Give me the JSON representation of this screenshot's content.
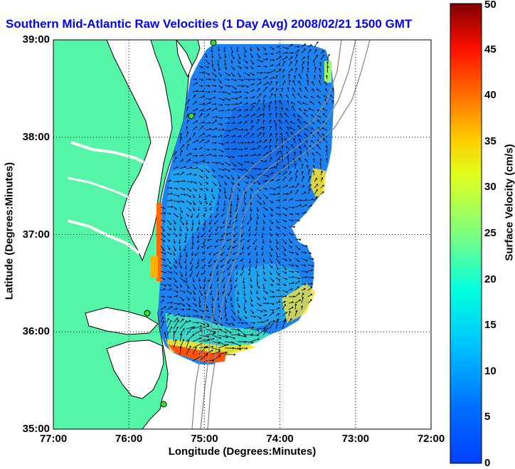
{
  "title": "Southern Mid-Atlantic Raw Velocities (1 Day Avg) 2008/02/21 1500 GMT",
  "x_axis": {
    "label": "Longitude (Degrees:Minutes)",
    "ticks": [
      {
        "text": "77:00",
        "value": -77
      },
      {
        "text": "76:00",
        "value": -76
      },
      {
        "text": "75:00",
        "value": -75
      },
      {
        "text": "74:00",
        "value": -74
      },
      {
        "text": "73:00",
        "value": -73
      },
      {
        "text": "72:00",
        "value": -72
      }
    ]
  },
  "y_axis": {
    "label": "Latitude (Degrees:Minutes)",
    "ticks": [
      {
        "text": "39:00",
        "value": 39
      },
      {
        "text": "38:00",
        "value": 38
      },
      {
        "text": "37:00",
        "value": 37
      },
      {
        "text": "36:00",
        "value": 36
      },
      {
        "text": "35:00",
        "value": 35
      }
    ]
  },
  "colorbar": {
    "label": "Surface Velocity (cm/s)",
    "min": 0,
    "max": 50,
    "ticks": [
      "50",
      "45",
      "40",
      "35",
      "30",
      "25",
      "20",
      "15",
      "10",
      "5",
      "0"
    ]
  },
  "map": {
    "lon_range": [
      -77,
      -72
    ],
    "lat_range": [
      35,
      39
    ],
    "land_color": "#55f5a8",
    "grid": true
  },
  "colors": {
    "title": "#0000ff",
    "coast_line": "#000000",
    "bathymetry_contour": "#8a8a8a",
    "arrows": "#000000"
  }
}
